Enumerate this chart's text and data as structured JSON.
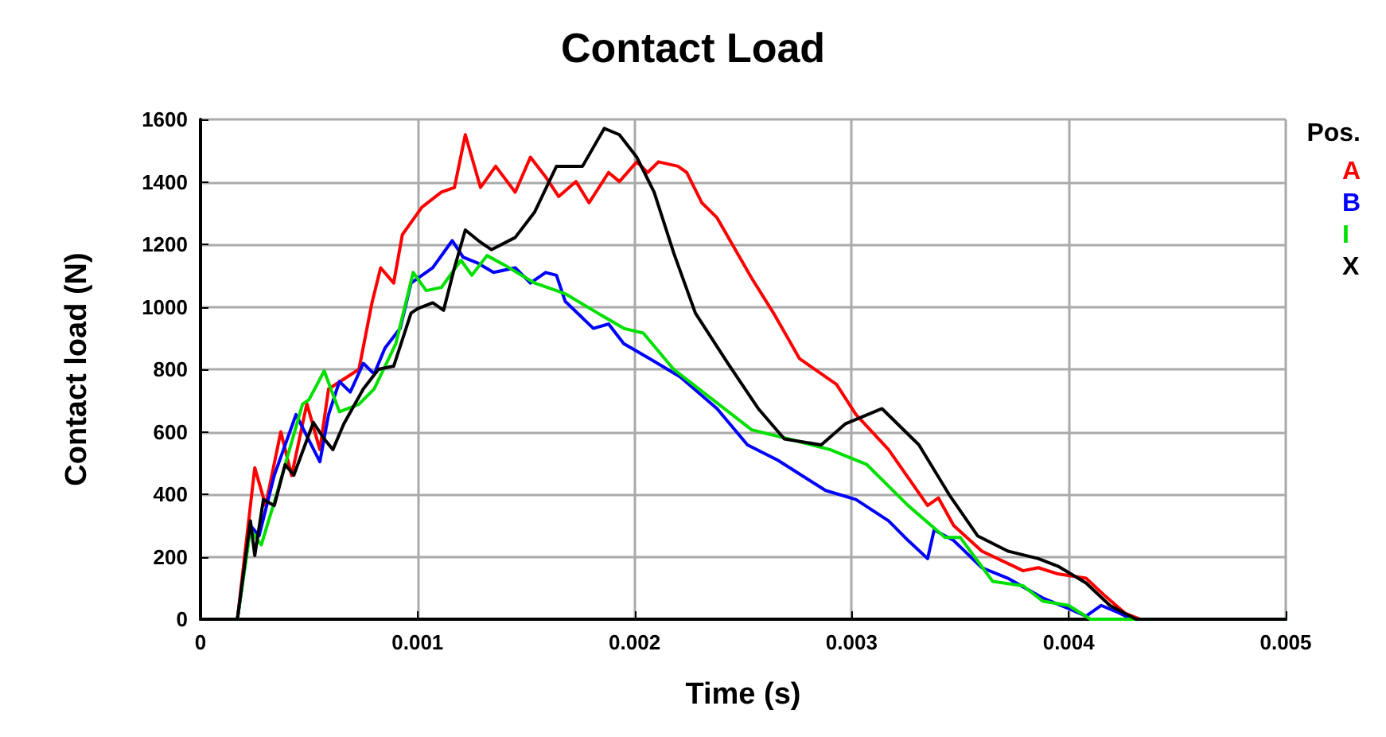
{
  "chart_data": {
    "type": "line",
    "title": "Contact Load",
    "xlabel": "Time (s)",
    "ylabel": "Contact load (N)",
    "legend_title": "Pos.",
    "legend": "right",
    "grid": true,
    "marker": "none",
    "line_style": "solid",
    "xlim": [
      0,
      0.005
    ],
    "xticks": [
      0,
      0.001,
      0.002,
      0.003,
      0.004,
      0.005
    ],
    "ylim": [
      0,
      1600
    ],
    "yticks": [
      0,
      200,
      400,
      600,
      800,
      1000,
      1200,
      1400,
      1600
    ],
    "series": [
      {
        "name": "A",
        "color": "#ff0000",
        "x": [
          0,
          0.00017,
          0.00025,
          0.0003,
          0.00037,
          0.00042,
          0.00049,
          0.00055,
          0.00059,
          0.00073,
          0.00079,
          0.00083,
          0.00089,
          0.00093,
          0.00102,
          0.00111,
          0.00117,
          0.00122,
          0.00129,
          0.00136,
          0.00145,
          0.00152,
          0.00159,
          0.00165,
          0.00173,
          0.00179,
          0.00188,
          0.00193,
          0.00201,
          0.00206,
          0.00211,
          0.0022,
          0.00224,
          0.00231,
          0.00238,
          0.00254,
          0.00264,
          0.00276,
          0.00293,
          0.00302,
          0.00317,
          0.00335,
          0.0034,
          0.00347,
          0.0036,
          0.00379,
          0.00386,
          0.00395,
          0.00408,
          0.00417,
          0.00426,
          0.00433,
          0.005
        ],
        "values": [
          0,
          0,
          485,
          364,
          600,
          460,
          690,
          543,
          737,
          800,
          1013,
          1125,
          1076,
          1231,
          1319,
          1367,
          1382,
          1551,
          1382,
          1450,
          1367,
          1479,
          1416,
          1353,
          1401,
          1333,
          1430,
          1401,
          1464,
          1430,
          1464,
          1450,
          1430,
          1333,
          1285,
          1091,
          980,
          834,
          752,
          655,
          543,
          364,
          388,
          300,
          218,
          155,
          165,
          145,
          131,
          73,
          19,
          0,
          0
        ]
      },
      {
        "name": "B",
        "color": "#0000ff",
        "x": [
          0,
          0.00017,
          0.00023,
          0.00027,
          0.00034,
          0.00044,
          0.00055,
          0.00059,
          0.00064,
          0.00069,
          0.00075,
          0.0008,
          0.00085,
          0.00092,
          0.00097,
          0.00107,
          0.00116,
          0.00121,
          0.00128,
          0.00135,
          0.00145,
          0.00152,
          0.00159,
          0.00164,
          0.00168,
          0.00181,
          0.00188,
          0.00195,
          0.00207,
          0.00221,
          0.00238,
          0.00252,
          0.00266,
          0.00288,
          0.00302,
          0.00317,
          0.00326,
          0.00335,
          0.00338,
          0.00343,
          0.00347,
          0.0036,
          0.00372,
          0.00388,
          0.004,
          0.00408,
          0.00415,
          0.00422,
          0.00429,
          0.005
        ],
        "values": [
          0,
          0,
          300,
          267,
          461,
          655,
          504,
          655,
          761,
          727,
          819,
          785,
          868,
          931,
          1076,
          1125,
          1212,
          1159,
          1139,
          1110,
          1125,
          1076,
          1110,
          1101,
          1018,
          931,
          945,
          882,
          834,
          776,
          674,
          558,
          509,
          412,
          383,
          315,
          252,
          194,
          286,
          267,
          252,
          165,
          131,
          68,
          34,
          10,
          44,
          24,
          0,
          0
        ]
      },
      {
        "name": "I",
        "color": "#00e000",
        "x": [
          0,
          0.00017,
          0.00023,
          0.00028,
          0.00035,
          0.00047,
          0.0005,
          0.00057,
          0.00064,
          0.00073,
          0.0008,
          0.0009,
          0.00098,
          0.00104,
          0.00111,
          0.0012,
          0.00125,
          0.00132,
          0.0014,
          0.00154,
          0.00164,
          0.00168,
          0.00183,
          0.00195,
          0.00204,
          0.00218,
          0.00236,
          0.00254,
          0.00271,
          0.0029,
          0.00307,
          0.00326,
          0.00343,
          0.0035,
          0.00365,
          0.00379,
          0.00388,
          0.004,
          0.0041,
          0.005
        ],
        "values": [
          0,
          0,
          286,
          238,
          398,
          688,
          703,
          795,
          664,
          688,
          737,
          882,
          1110,
          1052,
          1062,
          1149,
          1101,
          1164,
          1134,
          1076,
          1052,
          1042,
          980,
          931,
          916,
          800,
          703,
          606,
          577,
          543,
          495,
          364,
          262,
          262,
          121,
          107,
          58,
          44,
          0,
          0
        ]
      },
      {
        "name": "X",
        "color": "#000000",
        "x": [
          0,
          0.00017,
          0.00023,
          0.00025,
          0.00029,
          0.00034,
          0.00039,
          0.00043,
          0.00052,
          0.00057,
          0.00061,
          0.00066,
          0.00075,
          0.00082,
          0.00089,
          0.00097,
          0.001,
          0.00107,
          0.00112,
          0.00117,
          0.00122,
          0.00128,
          0.00134,
          0.00145,
          0.00154,
          0.00164,
          0.00176,
          0.00186,
          0.00193,
          0.00201,
          0.00209,
          0.00218,
          0.00228,
          0.00243,
          0.00257,
          0.00269,
          0.00286,
          0.00297,
          0.00314,
          0.00331,
          0.00345,
          0.00358,
          0.00372,
          0.00386,
          0.00395,
          0.00408,
          0.00419,
          0.00431,
          0.005
        ],
        "values": [
          0,
          0,
          315,
          204,
          383,
          364,
          495,
          461,
          630,
          577,
          543,
          625,
          737,
          800,
          810,
          980,
          994,
          1013,
          989,
          1125,
          1246,
          1212,
          1183,
          1222,
          1304,
          1450,
          1450,
          1571,
          1551,
          1479,
          1367,
          1173,
          980,
          819,
          674,
          577,
          558,
          625,
          674,
          558,
          398,
          267,
          218,
          194,
          170,
          116,
          44,
          0,
          0
        ]
      }
    ]
  }
}
